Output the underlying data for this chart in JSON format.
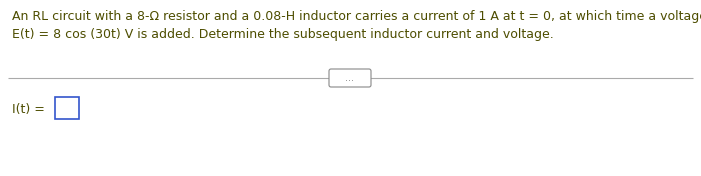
{
  "line1": "An RL circuit with a 8-Ω resistor and a 0.08-H inductor carries a current of 1 A at t = 0, at which time a voltage source",
  "line2": "E(t) = 8 cos (30t) V is added. Determine the subsequent inductor current and voltage.",
  "dots_text": "...",
  "label_text": "I(t) =",
  "text_color": "#4d4d00",
  "box_color": "#3355cc",
  "line_color": "#aaaaaa",
  "dots_color": "#888888",
  "bg_color": "#ffffff",
  "font_size": 9.0
}
